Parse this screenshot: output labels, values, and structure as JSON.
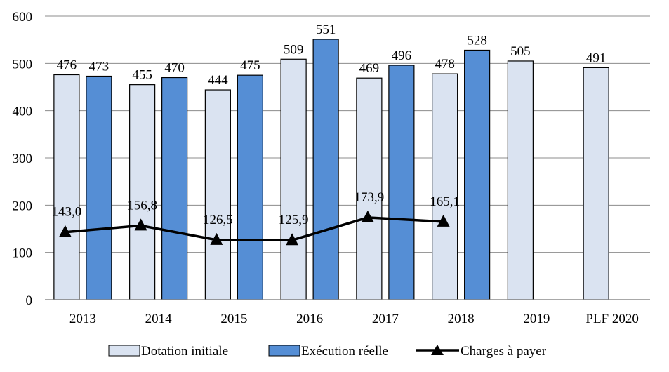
{
  "chart_data": {
    "type": "bar",
    "title": "",
    "xlabel": "",
    "ylabel": "",
    "ylim": [
      0,
      600
    ],
    "yticks": [
      0,
      100,
      200,
      300,
      400,
      500,
      600
    ],
    "grid": true,
    "legend_position": "bottom",
    "categories": [
      "2013",
      "2014",
      "2015",
      "2016",
      "2017",
      "2018",
      "2019",
      "PLF 2020"
    ],
    "series": [
      {
        "name": "Dotation initiale",
        "type": "bar",
        "color": "#DAE3F1",
        "values": [
          476,
          455,
          444,
          509,
          469,
          478,
          505,
          491
        ],
        "labels": [
          "476",
          "455",
          "444",
          "509",
          "469",
          "478",
          "505",
          "491"
        ]
      },
      {
        "name": "Exécution réelle",
        "type": "bar",
        "color": "#558ED5",
        "values": [
          473,
          470,
          475,
          551,
          496,
          528,
          null,
          null
        ],
        "labels": [
          "473",
          "470",
          "475",
          "551",
          "496",
          "528",
          null,
          null
        ]
      },
      {
        "name": "Charges à payer",
        "type": "line",
        "color": "#000000",
        "marker": "triangle",
        "values": [
          143.0,
          156.8,
          126.5,
          125.9,
          173.9,
          165.1,
          null,
          null
        ],
        "labels": [
          "143,0",
          "156,8",
          "126,5",
          "125,9",
          "173,9",
          "165,1",
          null,
          null
        ]
      }
    ]
  }
}
